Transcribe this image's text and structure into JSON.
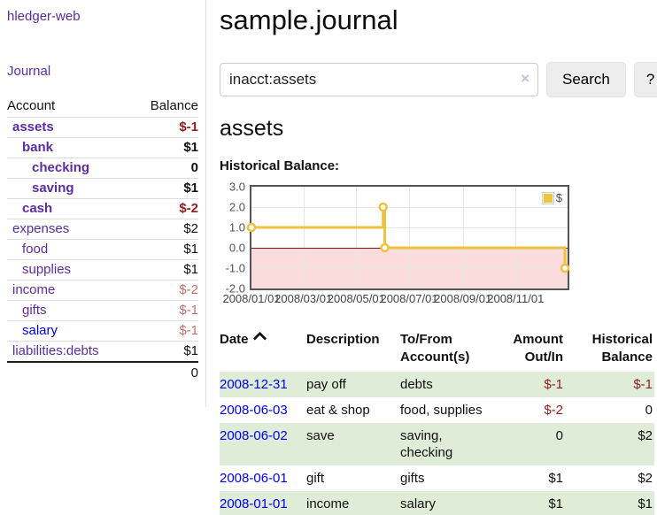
{
  "app": {
    "title": "hledger-web"
  },
  "nav": {
    "journal_label": "Journal"
  },
  "sidebar_accounts": {
    "col_account": "Account",
    "col_balance": "Balance",
    "rows": [
      {
        "name": "assets",
        "depth": 1,
        "bold": true,
        "balance": "$-1",
        "neg": "dark"
      },
      {
        "name": "bank",
        "depth": 2,
        "bold": true,
        "balance": "$1"
      },
      {
        "name": "checking",
        "depth": 3,
        "bold": true,
        "balance": "0"
      },
      {
        "name": "saving",
        "depth": 3,
        "bold": true,
        "balance": "$1"
      },
      {
        "name": "cash",
        "depth": 2,
        "bold": true,
        "balance": "$-2",
        "neg": "dark"
      },
      {
        "name": "expenses",
        "depth": 1,
        "bold": false,
        "balance": "$2"
      },
      {
        "name": "food",
        "depth": 2,
        "bold": false,
        "balance": "$1"
      },
      {
        "name": "supplies",
        "depth": 2,
        "bold": false,
        "balance": "$1"
      },
      {
        "name": "income",
        "depth": 1,
        "bold": false,
        "balance": "$-2",
        "neg": "light"
      },
      {
        "name": "gifts",
        "depth": 2,
        "bold": false,
        "balance": "$-1",
        "neg": "light"
      },
      {
        "name": "salary",
        "depth": 2,
        "bold": false,
        "balance": "$-1",
        "neg": "light",
        "link": "blue"
      },
      {
        "name": "liabilities:debts",
        "depth": 1,
        "bold": false,
        "balance": "$1"
      }
    ],
    "total": "0"
  },
  "header": {
    "title": "sample.journal"
  },
  "search": {
    "value": "inacct:assets",
    "clear_icon": "×",
    "button_label": "Search",
    "help_label": "?"
  },
  "account_page": {
    "heading": "assets",
    "chart_label": "Historical Balance:"
  },
  "chart_data": {
    "type": "line",
    "title": "Historical Balance",
    "series": [
      {
        "name": "$",
        "color": "#edc240",
        "step": true,
        "x": [
          "2008-01-01",
          "2008-06-01",
          "2008-06-03",
          "2008-12-31"
        ],
        "values": [
          1,
          2,
          0,
          -1
        ]
      }
    ],
    "x_ticks": [
      "2008/01/01",
      "2008/03/01",
      "2008/05/01",
      "2008/07/01",
      "2008/09/01",
      "2008/11/01"
    ],
    "y_ticks": [
      3.0,
      2.0,
      1.0,
      0.0,
      -1.0,
      -2.0
    ],
    "ylim": [
      -2,
      3
    ],
    "xlim": [
      "2008-01-01",
      "2008-12-31"
    ],
    "grid": true,
    "legend_position": "top-right",
    "negative_region_color": "#fadcdc",
    "zero_line_color": "#8c0d0d"
  },
  "register_table": {
    "headers": {
      "date": "Date",
      "description": "Description",
      "account": "To/From Account(s)",
      "amount": "Amount Out/In",
      "balance": "Historical Balance"
    },
    "rows": [
      {
        "date": "2008-12-31",
        "description": "pay off",
        "accounts": "debts",
        "amount": "$-1",
        "balance": "$-1"
      },
      {
        "date": "2008-06-03",
        "description": "eat & shop",
        "accounts": "food, supplies",
        "amount": "$-2",
        "balance": "0"
      },
      {
        "date": "2008-06-02",
        "description": "save",
        "accounts": "saving, checking",
        "amount": "0",
        "balance": "$2"
      },
      {
        "date": "2008-06-01",
        "description": "gift",
        "accounts": "gifts",
        "amount": "$1",
        "balance": "$2"
      },
      {
        "date": "2008-01-01",
        "description": "income",
        "accounts": "salary",
        "amount": "$1",
        "balance": "$1"
      }
    ]
  }
}
